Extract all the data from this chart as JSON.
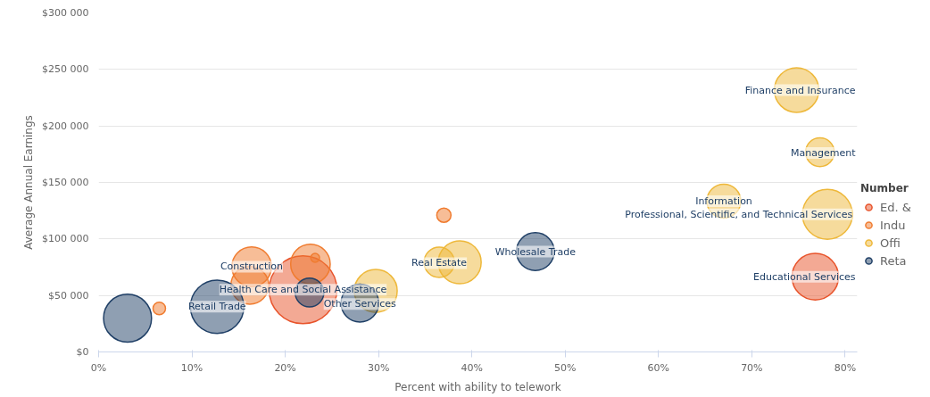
{
  "chart_data": {
    "type": "bubble",
    "xlabel": "Percent with ability to telework",
    "ylabel": "Average Annual Earnings",
    "legend_title": "Number",
    "xlim": [
      0,
      81.3
    ],
    "ylim": [
      0,
      300000
    ],
    "xticks": [
      {
        "value": 0,
        "label": "0%"
      },
      {
        "value": 10,
        "label": "10%"
      },
      {
        "value": 20,
        "label": "20%"
      },
      {
        "value": 30,
        "label": "30%"
      },
      {
        "value": 40,
        "label": "40%"
      },
      {
        "value": 50,
        "label": "50%"
      },
      {
        "value": 60,
        "label": "60%"
      },
      {
        "value": 70,
        "label": "70%"
      },
      {
        "value": 80,
        "label": "80%"
      }
    ],
    "yticks": [
      {
        "value": 0,
        "label": "$0"
      },
      {
        "value": 50000,
        "label": "$50 000"
      },
      {
        "value": 100000,
        "label": "$100 000"
      },
      {
        "value": 150000,
        "label": "$150 000"
      },
      {
        "value": 200000,
        "label": "$200 000"
      },
      {
        "value": 250000,
        "label": "$250 000"
      },
      {
        "value": 300000,
        "label": "$300 000"
      }
    ],
    "grid": "y",
    "legend": "right",
    "series": [
      {
        "name": "Ed. &",
        "color": "#e8532a",
        "x": [
          21.9,
          76.8
        ],
        "values": [
          55000,
          66600
        ],
        "sizes": [
          1,
          0.47
        ]
      },
      {
        "name": "Indu",
        "color": "#f07c30",
        "x": [
          6.5,
          16.4,
          16.2,
          22.7,
          23.2,
          37.0
        ],
        "values": [
          38500,
          75400,
          59000,
          77800,
          83300,
          121000
        ],
        "sizes": [
          0.034,
          0.34,
          0.31,
          0.34,
          0.017,
          0.044
        ]
      },
      {
        "name": "Offi",
        "color": "#eeb83a",
        "x": [
          29.7,
          36.5,
          38.7,
          67.0,
          74.8,
          77.3,
          78.1
        ],
        "values": [
          54000,
          79300,
          79300,
          133500,
          231700,
          176800,
          121800
        ],
        "sizes": [
          0.4,
          0.2,
          0.4,
          0.25,
          0.43,
          0.18,
          0.54
        ]
      },
      {
        "name": "Reta",
        "color": "#1f3f66",
        "x": [
          3.1,
          12.7,
          22.6,
          28.0,
          46.8
        ],
        "values": [
          29900,
          40000,
          52600,
          43200,
          88800
        ],
        "sizes": [
          0.5,
          0.62,
          0.18,
          0.31,
          0.31
        ]
      }
    ],
    "annotations": [
      {
        "text": "Retail Trade",
        "x": 12.7,
        "y": 40000
      },
      {
        "text": "Construction",
        "x": 16.4,
        "y": 75400
      },
      {
        "text": "Health Care and Social Assistance",
        "x": 21.9,
        "y": 55000
      },
      {
        "text": "Other Services",
        "x": 28.0,
        "y": 42400
      },
      {
        "text": "Real Estate",
        "x": 36.5,
        "y": 78600
      },
      {
        "text": "Wholesale Trade",
        "x": 46.8,
        "y": 88800
      },
      {
        "text": "Information",
        "x": 67.0,
        "y": 133500
      },
      {
        "text": "Professional, Scientific, and Technical Services",
        "x": 68.6,
        "y": 121800
      },
      {
        "text": "Finance and Insurance",
        "x": 74.8,
        "y": 231700
      },
      {
        "text": "Management",
        "x": 77.3,
        "y": 176000
      },
      {
        "text": "Educational Services",
        "x": 76.8,
        "y": 66600
      }
    ]
  }
}
